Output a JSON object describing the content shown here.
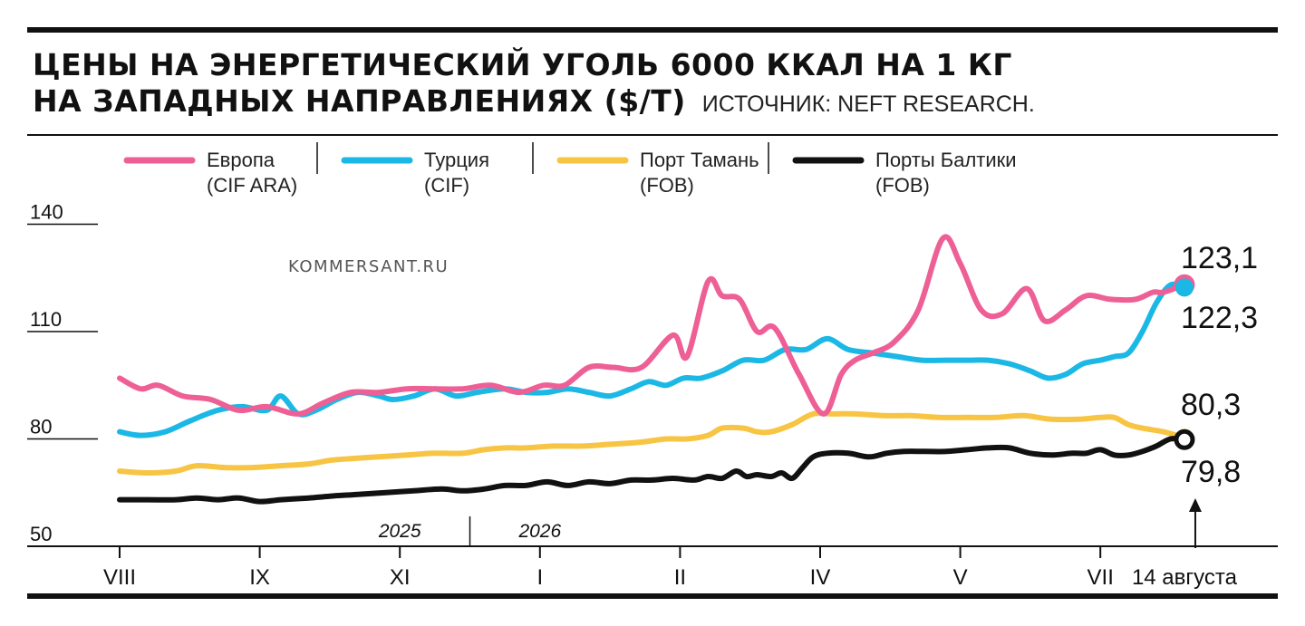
{
  "header": {
    "title_line1": "ЦЕНЫ НА ЭНЕРГЕТИЧЕСКИЙ УГОЛЬ 6000 ККАЛ НА 1 КГ",
    "title_line2": "НА ЗАПАДНЫХ НАПРАВЛЕНИЯХ ($/Т)",
    "source": "ИСТОЧНИК: NEFT RESEARCH."
  },
  "watermark": "KOMMERSANT.RU",
  "chart_data": {
    "type": "line",
    "title": "ЦЕНЫ НА ЭНЕРГЕТИЧЕСКИЙ УГОЛЬ 6000 ККАЛ НА 1 КГ НА ЗАПАДНЫХ НАПРАВЛЕНИЯХ ($/Т)",
    "xlabel": "",
    "ylabel": "",
    "ylim": [
      50,
      140
    ],
    "yticks": [
      "50",
      "80",
      "110",
      "140"
    ],
    "xlim": [
      0,
      50
    ],
    "xticks": [
      {
        "label": "VIII",
        "x": 0
      },
      {
        "label": "IX",
        "x": 4
      },
      {
        "label": "XI",
        "x": 8
      },
      {
        "label": "I",
        "x": 12
      },
      {
        "label": "II",
        "x": 16
      },
      {
        "label": "IV",
        "x": 20
      },
      {
        "label": "V",
        "x": 24
      },
      {
        "label": "VII",
        "x": 28
      },
      {
        "label": "14 августа",
        "x": 30.4
      }
    ],
    "year_marks": [
      {
        "label": "2025",
        "x": 8
      },
      {
        "label": "2026",
        "x": 12
      }
    ],
    "year_divider_x": 10,
    "last_date_label": "14 августа",
    "grid": false,
    "legend_position": "top",
    "series": [
      {
        "name": "Европа",
        "name_sub": "(CIF ARA)",
        "color": "#ee5f95",
        "end_label": "123,1",
        "x": [
          0,
          0.6,
          1.1,
          1.8,
          2.6,
          3.4,
          4.2,
          5.1,
          5.8,
          6.6,
          7.4,
          8.2,
          9.0,
          9.8,
          10.6,
          11.4,
          12.1,
          12.7,
          13.4,
          14.1,
          14.9,
          15.8,
          16.2,
          16.8,
          17.2,
          17.7,
          18.2,
          18.7,
          19.4,
          20.1,
          20.6,
          21.0,
          21.5,
          22.1,
          22.8,
          23.5,
          24.0,
          24.6,
          25.2,
          25.9,
          26.4,
          27.0,
          27.6,
          28.3,
          29.0,
          29.5,
          29.8,
          30.4
        ],
        "y": [
          97,
          94,
          95,
          92,
          91,
          88,
          89,
          87,
          90,
          93,
          93,
          94,
          94,
          94,
          95,
          93,
          95,
          95,
          100,
          100,
          100,
          109,
          103,
          124,
          120,
          119,
          110,
          111,
          98,
          87,
          98,
          102,
          104,
          107,
          116,
          136,
          129,
          116,
          115,
          122,
          113,
          116,
          120,
          119,
          119,
          121,
          121,
          123.1
        ]
      },
      {
        "name": "Турция",
        "name_sub": "(CIF)",
        "color": "#1bb8e6",
        "end_label": "122,3",
        "x": [
          0,
          0.6,
          1.3,
          2.0,
          2.8,
          3.5,
          4.2,
          4.6,
          5.1,
          5.6,
          6.2,
          6.8,
          7.4,
          7.8,
          8.4,
          9.0,
          9.6,
          10.2,
          11.0,
          11.6,
          12.2,
          12.8,
          13.4,
          14.0,
          14.6,
          15.1,
          15.6,
          16.1,
          16.6,
          17.2,
          17.8,
          18.4,
          19.0,
          19.6,
          20.2,
          20.8,
          21.5,
          22.2,
          22.9,
          23.6,
          24.2,
          24.8,
          25.4,
          26.0,
          26.5,
          27.0,
          27.5,
          28.0,
          28.4,
          28.8,
          29.2,
          29.6,
          30.0,
          30.4
        ],
        "y": [
          82,
          81,
          82,
          85,
          88,
          89,
          88,
          92,
          87,
          88,
          91,
          93,
          92,
          91,
          92,
          94,
          92,
          93,
          94,
          93,
          93,
          94,
          93,
          92,
          94,
          96,
          95,
          97,
          97,
          99,
          102,
          102,
          105,
          105,
          108,
          105,
          104,
          103,
          102,
          102,
          102,
          102,
          101,
          99,
          97,
          98,
          101,
          102,
          103,
          104,
          110,
          118,
          123,
          122.3
        ]
      },
      {
        "name": "Порт Тамань",
        "name_sub": "(FOB)",
        "color": "#f7c543",
        "end_label": "80,3",
        "x": [
          0,
          0.8,
          1.6,
          2.2,
          3.0,
          3.8,
          4.6,
          5.4,
          6.0,
          6.6,
          7.4,
          8.2,
          9.0,
          9.8,
          10.4,
          11.0,
          11.6,
          12.4,
          13.2,
          14.0,
          14.8,
          15.6,
          16.2,
          16.8,
          17.2,
          17.8,
          18.2,
          18.6,
          19.2,
          19.8,
          20.4,
          21.0,
          21.8,
          22.6,
          23.4,
          24.2,
          25.0,
          25.8,
          26.6,
          27.4,
          28.0,
          28.4,
          28.8,
          29.2,
          29.8,
          30.4
        ],
        "y": [
          71,
          70.5,
          71,
          72.5,
          72,
          72,
          72.5,
          73,
          74,
          74.5,
          75,
          75.5,
          76,
          76,
          77,
          77.5,
          77.5,
          78,
          78,
          78.5,
          79,
          80,
          80,
          81,
          83,
          83,
          82,
          82,
          84,
          87,
          87,
          87,
          86.5,
          86.5,
          86,
          86,
          86,
          86.5,
          85.5,
          85.5,
          86,
          86,
          84,
          83,
          82,
          80.3
        ]
      },
      {
        "name": "Порты Балтики",
        "name_sub": "(FOB)",
        "color": "#111111",
        "end_label": "79,8",
        "x": [
          0,
          0.8,
          1.6,
          2.2,
          2.8,
          3.4,
          4.0,
          4.6,
          5.4,
          6.0,
          6.8,
          7.6,
          8.4,
          9.2,
          9.8,
          10.4,
          11.0,
          11.6,
          12.2,
          12.8,
          13.4,
          14.0,
          14.6,
          15.2,
          15.8,
          16.4,
          16.8,
          17.2,
          17.6,
          17.9,
          18.2,
          18.6,
          18.9,
          19.2,
          19.5,
          19.8,
          20.2,
          20.8,
          21.4,
          21.9,
          22.4,
          23.0,
          23.6,
          24.2,
          24.8,
          25.4,
          26.0,
          26.6,
          27.2,
          27.6,
          28.0,
          28.4,
          28.8,
          29.2,
          29.6,
          30.0,
          30.4
        ],
        "y": [
          63,
          63,
          63,
          63.5,
          63,
          63.5,
          62.5,
          63,
          63.5,
          64,
          64.5,
          65,
          65.5,
          66,
          65.5,
          66,
          67,
          67,
          68,
          67,
          68,
          67.5,
          68.5,
          68.5,
          69,
          68.5,
          69.5,
          69,
          71,
          69.5,
          70,
          69.5,
          70.5,
          69,
          72,
          75,
          76,
          76,
          75,
          76,
          76.5,
          76.5,
          76.5,
          77,
          77.5,
          77.5,
          76,
          75.5,
          76,
          76,
          77,
          75.5,
          75.5,
          76.5,
          78,
          80,
          79.8
        ]
      }
    ]
  }
}
